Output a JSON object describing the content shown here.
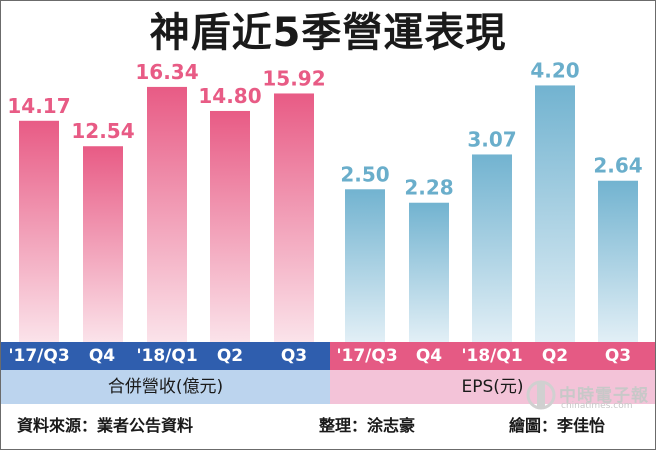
{
  "title": "神盾近5季營運表現",
  "chart_data": [
    {
      "type": "bar",
      "categories": [
        "'17/Q3",
        "Q4",
        "'18/Q1",
        "Q2",
        "Q3"
      ],
      "values": [
        14.17,
        12.54,
        16.34,
        14.8,
        15.92
      ],
      "value_labels": [
        "14.17",
        "12.54",
        "16.34",
        "14.80",
        "15.92"
      ],
      "group_label": "合併營收(億元)",
      "ylim": [
        0,
        18
      ],
      "grid": false
    },
    {
      "type": "bar",
      "categories": [
        "'17/Q3",
        "Q4",
        "'18/Q1",
        "Q2",
        "Q3"
      ],
      "values": [
        2.5,
        2.28,
        3.07,
        4.2,
        2.64
      ],
      "value_labels": [
        "2.50",
        "2.28",
        "3.07",
        "4.20",
        "2.64"
      ],
      "group_label": "EPS(元)",
      "ylim": [
        0,
        4.6
      ],
      "grid": false
    }
  ],
  "colors": {
    "revenue_bar": "#e85b85",
    "revenue_label": "#e85b85",
    "eps_bar": "#78b8d3",
    "eps_label": "#6aaecb",
    "axis_band_left": "#2f5eae",
    "axis_band_right": "#e55a84"
  },
  "footer": {
    "source": "資料來源：業者公告資料",
    "editor": "整理：涂志豪",
    "artist": "繪圖：李佳怡"
  },
  "watermark": {
    "text": "中時電子報",
    "sub": "chinatimes.com"
  }
}
